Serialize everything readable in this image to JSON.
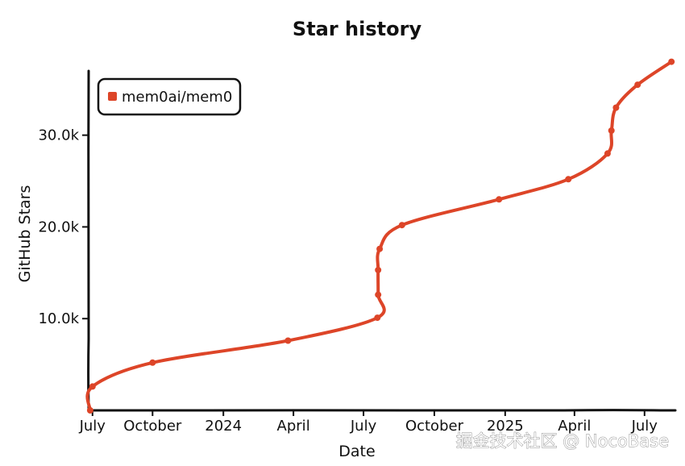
{
  "chart_data": {
    "type": "line",
    "title": "Star history",
    "xlabel": "Date",
    "ylabel": "GitHub Stars",
    "x_range": [
      "2023-07-10",
      "2025-08-10"
    ],
    "ylim": [
      0,
      37000
    ],
    "y_ticks": [
      {
        "value": 10000,
        "label": "10.0k"
      },
      {
        "value": 20000,
        "label": "20.0k"
      },
      {
        "value": 30000,
        "label": "30.0k"
      }
    ],
    "x_ticks": [
      {
        "date": "2023-07-15",
        "label": "July"
      },
      {
        "date": "2023-10-01",
        "label": "October"
      },
      {
        "date": "2024-01-01",
        "label": "2024"
      },
      {
        "date": "2024-04-01",
        "label": "April"
      },
      {
        "date": "2024-07-01",
        "label": "July"
      },
      {
        "date": "2024-10-01",
        "label": "October"
      },
      {
        "date": "2025-01-01",
        "label": "2025"
      },
      {
        "date": "2025-04-01",
        "label": "April"
      },
      {
        "date": "2025-07-01",
        "label": "July"
      }
    ],
    "series": [
      {
        "name": "mem0ai/mem0",
        "color": "#dd4528",
        "points": [
          {
            "x": "2023-07-12",
            "y": 0
          },
          {
            "x": "2023-07-15",
            "y": 2600
          },
          {
            "x": "2023-10-01",
            "y": 5200
          },
          {
            "x": "2024-03-25",
            "y": 7600
          },
          {
            "x": "2024-07-19",
            "y": 10100
          },
          {
            "x": "2024-07-20",
            "y": 12600
          },
          {
            "x": "2024-07-20",
            "y": 15300
          },
          {
            "x": "2024-07-22",
            "y": 17600
          },
          {
            "x": "2024-08-20",
            "y": 20200
          },
          {
            "x": "2024-12-24",
            "y": 23000
          },
          {
            "x": "2025-03-24",
            "y": 25200
          },
          {
            "x": "2025-05-14",
            "y": 28000
          },
          {
            "x": "2025-05-19",
            "y": 30500
          },
          {
            "x": "2025-05-25",
            "y": 33000
          },
          {
            "x": "2025-06-22",
            "y": 35500
          },
          {
            "x": "2025-08-05",
            "y": 38000
          }
        ]
      }
    ],
    "legend": "top-left",
    "grid": false
  },
  "watermark": "掘金技术社区 @ NocoBase"
}
